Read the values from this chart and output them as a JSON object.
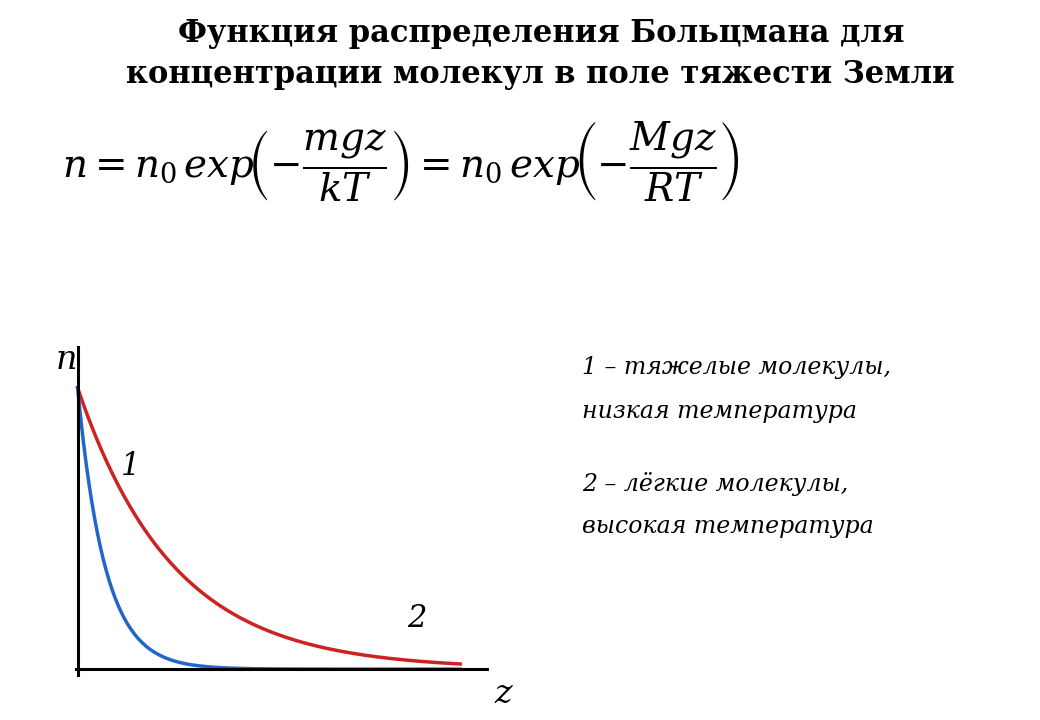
{
  "title_line1": "Функция распределения Больцмана для",
  "title_line2": "концентрации молекул в поле тяжести Земли",
  "curve1_label": "1",
  "curve2_label": "2",
  "legend1_line1": "1 – тяжелые молекулы,",
  "legend1_line2": "низкая температура",
  "legend2_line1": "2 – лёгкие молекулы,",
  "legend2_line2": "высокая температура",
  "xlabel": "z",
  "ylabel": "n",
  "curve1_color": "#2266cc",
  "curve2_color": "#cc2222",
  "curve1_decay": 3.5,
  "curve2_decay": 1.0,
  "background_color": "#ffffff"
}
